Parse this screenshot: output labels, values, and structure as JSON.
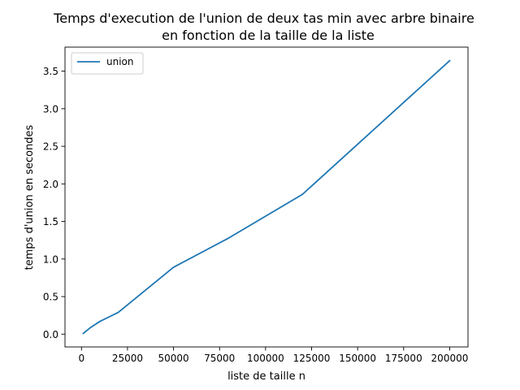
{
  "chart_data": {
    "type": "line",
    "title_lines": [
      "Temps d'execution de l'union de deux tas min avec arbre binaire",
      "en fonction de la taille de la liste"
    ],
    "xlabel": "liste de taille n",
    "ylabel": "temps d'union en secondes",
    "xlim": [
      -8950,
      209950
    ],
    "ylim": [
      -0.17,
      3.82
    ],
    "xticks": [
      0,
      25000,
      50000,
      75000,
      100000,
      125000,
      150000,
      175000,
      200000
    ],
    "xtick_labels": [
      "0",
      "25000",
      "50000",
      "75000",
      "100000",
      "125000",
      "150000",
      "175000",
      "200000"
    ],
    "yticks": [
      0.0,
      0.5,
      1.0,
      1.5,
      2.0,
      2.5,
      3.0,
      3.5
    ],
    "ytick_labels": [
      "0.0",
      "0.5",
      "1.0",
      "1.5",
      "2.0",
      "2.5",
      "3.0",
      "3.5"
    ],
    "grid": false,
    "legend_position": "upper-left",
    "series": [
      {
        "name": "union",
        "color": "#1f77b4",
        "x": [
          1000,
          5000,
          10000,
          20000,
          50000,
          80000,
          120000,
          200000
        ],
        "y": [
          0.01,
          0.09,
          0.17,
          0.29,
          0.89,
          1.28,
          1.86,
          3.64
        ]
      }
    ]
  }
}
